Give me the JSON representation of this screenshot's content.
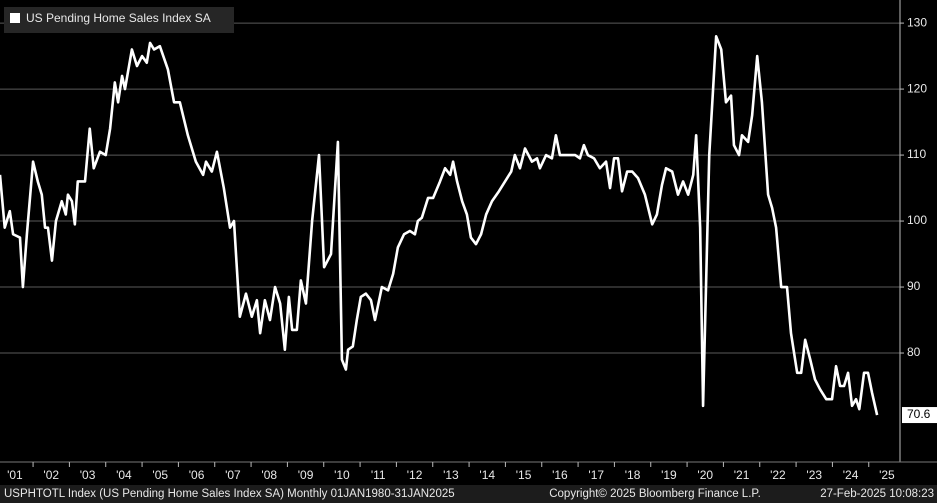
{
  "chart_data": {
    "type": "line",
    "title": "US Pending Home Sales Index SA",
    "x": [
      2001.09,
      2001.22,
      2001.36,
      2001.45,
      2001.64,
      2001.72,
      2001.83,
      2002.0,
      2002.13,
      2002.24,
      2002.33,
      2002.41,
      2002.52,
      2002.63,
      2002.79,
      2002.9,
      2002.96,
      2003.07,
      2003.15,
      2003.23,
      2003.43,
      2003.56,
      2003.67,
      2003.84,
      2004.0,
      2004.12,
      2004.25,
      2004.34,
      2004.45,
      2004.53,
      2004.72,
      2004.86,
      2005.0,
      2005.13,
      2005.22,
      2005.33,
      2005.49,
      2005.71,
      2005.88,
      2006.04,
      2006.26,
      2006.48,
      2006.68,
      2006.76,
      2006.92,
      2007.06,
      2007.25,
      2007.42,
      2007.53,
      2007.69,
      2007.86,
      2008.02,
      2008.16,
      2008.25,
      2008.38,
      2008.52,
      2008.66,
      2008.8,
      2008.93,
      2009.04,
      2009.13,
      2009.26,
      2009.37,
      2009.51,
      2009.68,
      2009.87,
      2010.01,
      2010.2,
      2010.39,
      2010.5,
      2010.61,
      2010.67,
      2010.8,
      2010.91,
      2011.02,
      2011.16,
      2011.3,
      2011.41,
      2011.6,
      2011.77,
      2011.91,
      2012.04,
      2012.21,
      2012.37,
      2012.51,
      2012.59,
      2012.7,
      2012.87,
      2013.01,
      2013.2,
      2013.34,
      2013.48,
      2013.56,
      2013.67,
      2013.81,
      2013.94,
      2014.05,
      2014.19,
      2014.33,
      2014.47,
      2014.63,
      2014.82,
      2014.99,
      2015.16,
      2015.26,
      2015.4,
      2015.54,
      2015.73,
      2015.87,
      2015.95,
      2016.12,
      2016.28,
      2016.39,
      2016.5,
      2016.72,
      2016.92,
      2017.05,
      2017.16,
      2017.27,
      2017.44,
      2017.6,
      2017.77,
      2017.88,
      2017.99,
      2018.1,
      2018.21,
      2018.35,
      2018.49,
      2018.65,
      2018.84,
      2019.04,
      2019.17,
      2019.31,
      2019.42,
      2019.59,
      2019.75,
      2019.89,
      2020.03,
      2020.17,
      2020.25,
      2020.36,
      2020.44,
      2020.61,
      2020.8,
      2020.94,
      2021.07,
      2021.21,
      2021.29,
      2021.43,
      2021.51,
      2021.68,
      2021.79,
      2021.93,
      2022.06,
      2022.23,
      2022.34,
      2022.45,
      2022.59,
      2022.75,
      2022.86,
      2023.03,
      2023.14,
      2023.25,
      2023.39,
      2023.52,
      2023.66,
      2023.83,
      2023.99,
      2024.1,
      2024.21,
      2024.32,
      2024.43,
      2024.54,
      2024.65,
      2024.74,
      2024.87,
      2024.98,
      2025.09,
      2025.23
    ],
    "series": [
      {
        "name": "US Pending Home Sales Index SA",
        "color": "#ffffff",
        "values": [
          107,
          99,
          101.5,
          98,
          97.5,
          90,
          98,
          109,
          106,
          104,
          99,
          99,
          94,
          100,
          103,
          101,
          104,
          103,
          99.5,
          106,
          106,
          114,
          108,
          110.5,
          110,
          114,
          121,
          118,
          122,
          120,
          126,
          123.5,
          125,
          124,
          127,
          126,
          126.5,
          123,
          118,
          118,
          113,
          109,
          107,
          109,
          107.5,
          110.5,
          105,
          99,
          100,
          85.5,
          89,
          85.5,
          88,
          83,
          88,
          85,
          90,
          87.5,
          80.5,
          88.5,
          83.5,
          83.5,
          91,
          87.5,
          100,
          110,
          93,
          95,
          112,
          79,
          77.5,
          80.5,
          81,
          85,
          88.5,
          89,
          88,
          85,
          90,
          89.5,
          92,
          96,
          98,
          98.5,
          98,
          100,
          100.5,
          103.5,
          103.5,
          106,
          108,
          107,
          109,
          106,
          103,
          101,
          97.5,
          96.5,
          98,
          101,
          103,
          104.5,
          106,
          107.5,
          110,
          108,
          111,
          109,
          109.5,
          108,
          110,
          109.5,
          113,
          110,
          110,
          110,
          109.5,
          111.5,
          110,
          109.5,
          108,
          109,
          105,
          109.5,
          109.5,
          104.5,
          107.5,
          107.5,
          106.5,
          104,
          99.5,
          101,
          105.5,
          108,
          107.5,
          104,
          106,
          104,
          107,
          113,
          99,
          72,
          110,
          128,
          126,
          118,
          119,
          111.5,
          110,
          113,
          112,
          116,
          125,
          118,
          104,
          102,
          99,
          90,
          90,
          83,
          77,
          77,
          82,
          79,
          76,
          74.5,
          73,
          73,
          78,
          75,
          75,
          77,
          72,
          73,
          71.5,
          77,
          77,
          74,
          70.6
        ]
      }
    ],
    "xlim": [
      2001.09,
      2025.86
    ],
    "xticks": [
      {
        "value": 2001,
        "label": "'01"
      },
      {
        "value": 2002,
        "label": "'02"
      },
      {
        "value": 2003,
        "label": "'03"
      },
      {
        "value": 2004,
        "label": "'04"
      },
      {
        "value": 2005,
        "label": "'05"
      },
      {
        "value": 2006,
        "label": "'06"
      },
      {
        "value": 2007,
        "label": "'07"
      },
      {
        "value": 2008,
        "label": "'08"
      },
      {
        "value": 2009,
        "label": "'09"
      },
      {
        "value": 2010,
        "label": "'10"
      },
      {
        "value": 2011,
        "label": "'11"
      },
      {
        "value": 2012,
        "label": "'12"
      },
      {
        "value": 2013,
        "label": "'13"
      },
      {
        "value": 2014,
        "label": "'14"
      },
      {
        "value": 2015,
        "label": "'15"
      },
      {
        "value": 2016,
        "label": "'16"
      },
      {
        "value": 2017,
        "label": "'17"
      },
      {
        "value": 2018,
        "label": "'18"
      },
      {
        "value": 2019,
        "label": "'19"
      },
      {
        "value": 2020,
        "label": "'20"
      },
      {
        "value": 2021,
        "label": "'21"
      },
      {
        "value": 2022,
        "label": "'22"
      },
      {
        "value": 2023,
        "label": "'23"
      },
      {
        "value": 2024,
        "label": "'24"
      },
      {
        "value": 2025,
        "label": "'25"
      }
    ],
    "ylim": [
      65,
      133.5
    ],
    "yticks": [
      80,
      90,
      100,
      110,
      120,
      130
    ],
    "grid": true,
    "legend": "upper left",
    "footer": {
      "left": "USPHTOTL Index (US Pending Home Sales Index SA)  Monthly 01JAN1980-31JAN2025",
      "center": "Copyright© 2025 Bloomberg Finance L.P.",
      "right": "27-Feb-2025 10:08:23"
    }
  }
}
